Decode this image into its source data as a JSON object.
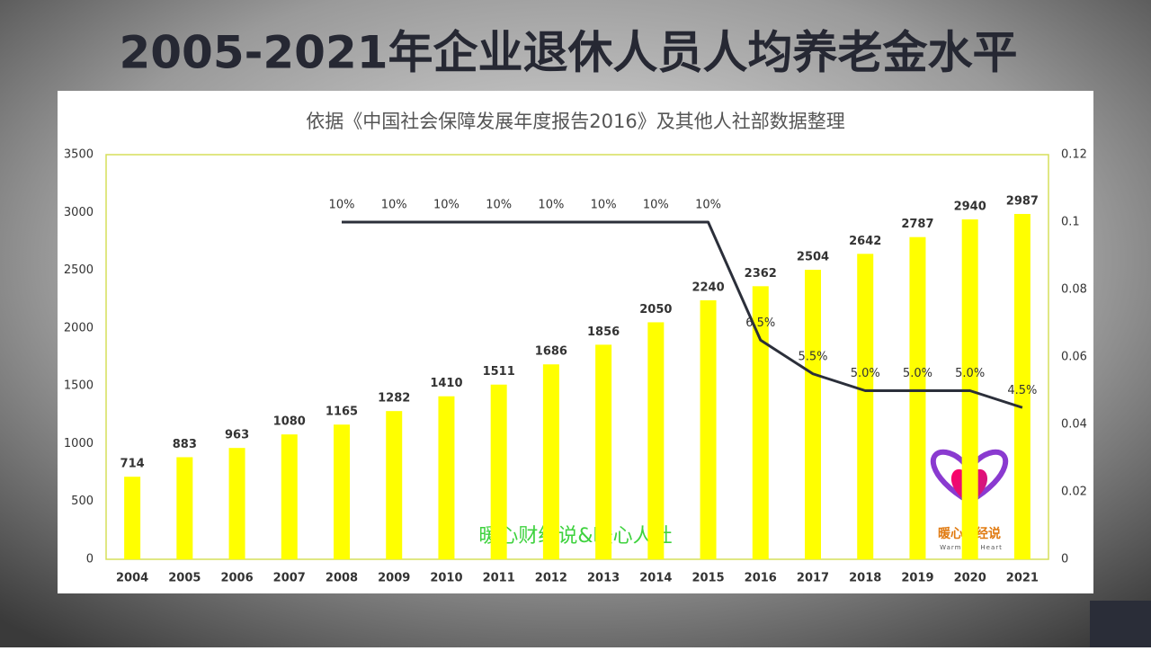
{
  "chart_data": {
    "type": "bar-line",
    "title": "2005-2021年企业退休人员人均养老金水平",
    "subtitle": "依据《中国社会保障发展年度报告2016》及其他人社部数据整理",
    "annotations": [
      "暖心财经说&暖心人社",
      "暖心财经说",
      "Warm the Heart"
    ],
    "categories": [
      "2004",
      "2005",
      "2006",
      "2007",
      "2008",
      "2009",
      "2010",
      "2011",
      "2012",
      "2013",
      "2014",
      "2015",
      "2016",
      "2017",
      "2018",
      "2019",
      "2020",
      "2021"
    ],
    "series": [
      {
        "type": "bar",
        "color": "#ffff00",
        "values": [
          714,
          883,
          963,
          1080,
          1165,
          1282,
          1410,
          1511,
          1686,
          1856,
          2050,
          2240,
          2362,
          2504,
          2642,
          2787,
          2940,
          2987
        ]
      },
      {
        "type": "line",
        "axis": "y2",
        "color": "#2b2f3a",
        "values": [
          null,
          null,
          null,
          null,
          0.1,
          0.1,
          0.1,
          0.1,
          0.1,
          0.1,
          0.1,
          0.1,
          0.065,
          0.055,
          0.05,
          0.05,
          0.05,
          0.045
        ],
        "value_labels": [
          null,
          null,
          null,
          null,
          "10%",
          "10%",
          "10%",
          "10%",
          "10%",
          "10%",
          "10%",
          "10%",
          "6.5%",
          "5.5%",
          "5.0%",
          "5.0%",
          "5.0%",
          "4.5%"
        ]
      }
    ],
    "ylim": [
      0,
      3500
    ],
    "yticks": [
      0,
      500,
      1000,
      1500,
      2000,
      2500,
      3000,
      3500
    ],
    "y2lim": [
      0,
      0.12
    ],
    "y2ticks": [
      0,
      0.02,
      0.04,
      0.06,
      0.08,
      0.1,
      0.12
    ],
    "grid": false
  }
}
